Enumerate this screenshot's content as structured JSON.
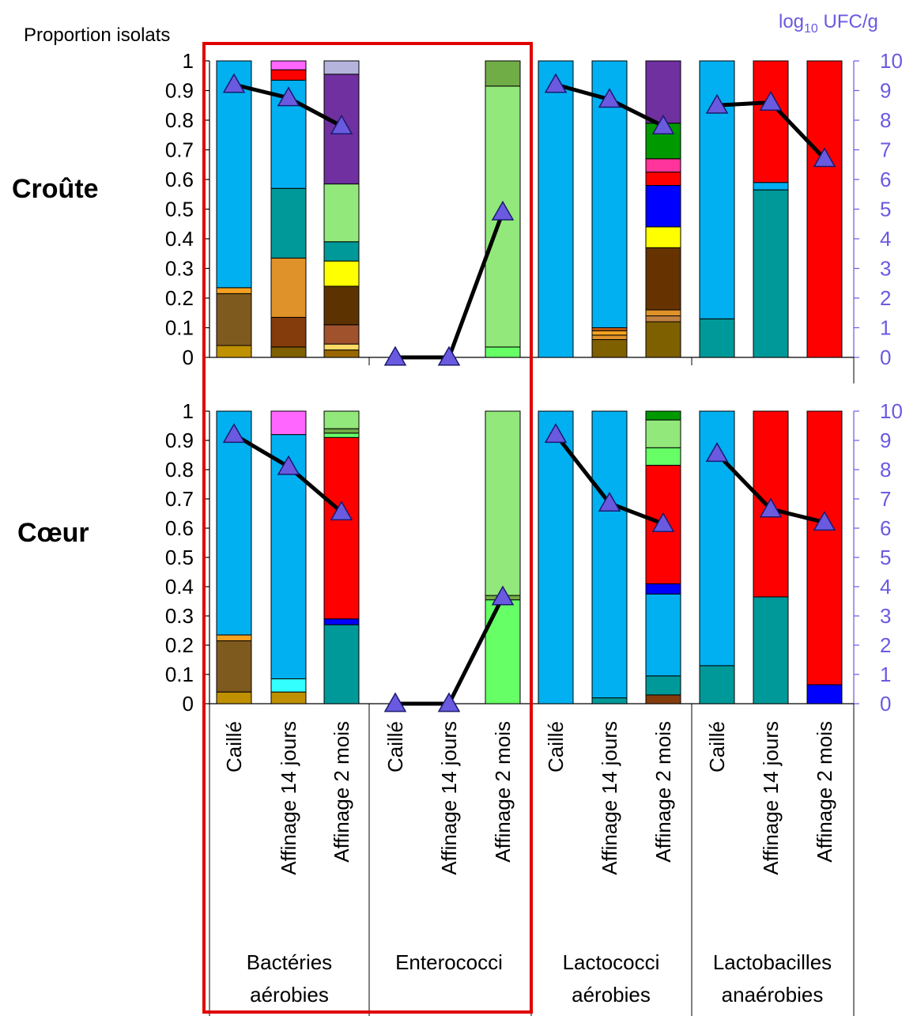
{
  "chart_data": {
    "type": "bar",
    "stacked": true,
    "y_left_label": "Proportion isolats",
    "y_right_label_main": "log",
    "y_right_label_sub": "10",
    "y_right_label_tail": " UFC/g",
    "y_left_ticks": [
      "0",
      "0.1",
      "0.2",
      "0.3",
      "0.4",
      "0.5",
      "0.6",
      "0.7",
      "0.8",
      "0.9",
      "1"
    ],
    "y_right_ticks": [
      "0",
      "1",
      "2",
      "3",
      "4",
      "5",
      "6",
      "7",
      "8",
      "9",
      "10"
    ],
    "ylim_left": [
      0,
      1
    ],
    "ylim_right": [
      0,
      10
    ],
    "categories": [
      "Caillé",
      "Affinage 14 jours",
      "Affinage 2 mois",
      "Caillé",
      "Affinage 14 jours",
      "Affinage 2 mois",
      "Caillé",
      "Affinage 14 jours",
      "Affinage 2 mois",
      "Caillé",
      "Affinage 14 jours",
      "Affinage 2 mois"
    ],
    "groups": [
      {
        "line1": "Bactéries",
        "line2": "aérobies"
      },
      {
        "line1": "Enterococci",
        "line2": ""
      },
      {
        "line1": "Lactococci",
        "line2": "aérobies"
      },
      {
        "line1": "Lactobacilles",
        "line2": "anaérobies"
      }
    ],
    "panels": [
      {
        "name": "Croûte",
        "bars": [
          [
            {
              "v": 0.04,
              "c": "#BF9000"
            },
            {
              "v": 0.175,
              "c": "#7F5A1E"
            },
            {
              "v": 0.02,
              "c": "#F4A020"
            },
            {
              "v": 0.765,
              "c": "#00B0F0"
            }
          ],
          [
            {
              "v": 0.035,
              "c": "#7F6000"
            },
            {
              "v": 0.1,
              "c": "#843C0C"
            },
            {
              "v": 0.2,
              "c": "#E0922A"
            },
            {
              "v": 0.235,
              "c": "#009999"
            },
            {
              "v": 0.365,
              "c": "#00B0F0"
            },
            {
              "v": 0.035,
              "c": "#FF0000"
            },
            {
              "v": 0.03,
              "c": "#FF66FF"
            }
          ],
          [
            {
              "v": 0.025,
              "c": "#996600"
            },
            {
              "v": 0.02,
              "c": "#FFD966"
            },
            {
              "v": 0.065,
              "c": "#A0522D"
            },
            {
              "v": 0.13,
              "c": "#5C3300"
            },
            {
              "v": 0.085,
              "c": "#FFFF00"
            },
            {
              "v": 0.065,
              "c": "#009999"
            },
            {
              "v": 0.195,
              "c": "#92E87A"
            },
            {
              "v": 0.37,
              "c": "#7030A0"
            },
            {
              "v": 0.045,
              "c": "#B4B4DC"
            }
          ],
          [],
          [],
          [
            {
              "v": 0.035,
              "c": "#66FF66"
            },
            {
              "v": 0.88,
              "c": "#92E87A"
            },
            {
              "v": 0.085,
              "c": "#70AD47"
            }
          ],
          [
            {
              "v": 1.0,
              "c": "#00B0F0"
            }
          ],
          [
            {
              "v": 0.06,
              "c": "#7F6000"
            },
            {
              "v": 0.015,
              "c": "#E0922A"
            },
            {
              "v": 0.015,
              "c": "#F4A020"
            },
            {
              "v": 0.01,
              "c": "#C55A11"
            },
            {
              "v": 0.9,
              "c": "#00B0F0"
            }
          ],
          [
            {
              "v": 0.12,
              "c": "#7F6000"
            },
            {
              "v": 0.02,
              "c": "#C08040"
            },
            {
              "v": 0.02,
              "c": "#E0922A"
            },
            {
              "v": 0.21,
              "c": "#663300"
            },
            {
              "v": 0.07,
              "c": "#FFFF00"
            },
            {
              "v": 0.14,
              "c": "#0000FF"
            },
            {
              "v": 0.045,
              "c": "#FF0000"
            },
            {
              "v": 0.045,
              "c": "#FF3399"
            },
            {
              "v": 0.12,
              "c": "#009900"
            },
            {
              "v": 0.21,
              "c": "#7030A0"
            }
          ],
          [
            {
              "v": 0.13,
              "c": "#009999"
            },
            {
              "v": 0.87,
              "c": "#00B0F0"
            }
          ],
          [
            {
              "v": 0.565,
              "c": "#009999"
            },
            {
              "v": 0.025,
              "c": "#00B0F0"
            },
            {
              "v": 0.41,
              "c": "#FF0000"
            }
          ],
          [
            {
              "v": 1.0,
              "c": "#FF0000"
            }
          ]
        ],
        "log_ufc": [
          9.2,
          8.75,
          7.8,
          0,
          0,
          4.9,
          9.2,
          8.7,
          7.8,
          8.5,
          8.6,
          6.7
        ]
      },
      {
        "name": "Cœur",
        "bars": [
          [
            {
              "v": 0.04,
              "c": "#BF9000"
            },
            {
              "v": 0.175,
              "c": "#7F5A1E"
            },
            {
              "v": 0.02,
              "c": "#F4A020"
            },
            {
              "v": 0.765,
              "c": "#00B0F0"
            }
          ],
          [
            {
              "v": 0.04,
              "c": "#BF9000"
            },
            {
              "v": 0.045,
              "c": "#33FFFF"
            },
            {
              "v": 0.835,
              "c": "#00B0F0"
            },
            {
              "v": 0.08,
              "c": "#FF66FF"
            }
          ],
          [
            {
              "v": 0.27,
              "c": "#009999"
            },
            {
              "v": 0.02,
              "c": "#0000FF"
            },
            {
              "v": 0.62,
              "c": "#FF0000"
            },
            {
              "v": 0.015,
              "c": "#66FF66"
            },
            {
              "v": 0.015,
              "c": "#70AD47"
            },
            {
              "v": 0.06,
              "c": "#92E87A"
            }
          ],
          [],
          [],
          [
            {
              "v": 0.355,
              "c": "#66FF66"
            },
            {
              "v": 0.015,
              "c": "#70AD47"
            },
            {
              "v": 0.63,
              "c": "#92E87A"
            }
          ],
          [
            {
              "v": 1.0,
              "c": "#00B0F0"
            }
          ],
          [
            {
              "v": 0.02,
              "c": "#009999"
            },
            {
              "v": 0.98,
              "c": "#00B0F0"
            }
          ],
          [
            {
              "v": 0.03,
              "c": "#843C0C"
            },
            {
              "v": 0.065,
              "c": "#009999"
            },
            {
              "v": 0.28,
              "c": "#00B0F0"
            },
            {
              "v": 0.035,
              "c": "#0000FF"
            },
            {
              "v": 0.405,
              "c": "#FF0000"
            },
            {
              "v": 0.06,
              "c": "#66FF66"
            },
            {
              "v": 0.095,
              "c": "#92E87A"
            },
            {
              "v": 0.03,
              "c": "#009900"
            }
          ],
          [
            {
              "v": 0.13,
              "c": "#009999"
            },
            {
              "v": 0.87,
              "c": "#00B0F0"
            }
          ],
          [
            {
              "v": 0.365,
              "c": "#009999"
            },
            {
              "v": 0.635,
              "c": "#FF0000"
            }
          ],
          [
            {
              "v": 0.065,
              "c": "#0000FF"
            },
            {
              "v": 0.935,
              "c": "#FF0000"
            }
          ]
        ],
        "log_ufc": [
          9.2,
          8.1,
          6.55,
          0,
          0,
          3.65,
          9.2,
          6.85,
          6.15,
          8.55,
          6.65,
          6.2
        ]
      }
    ],
    "line_color": "#000000",
    "marker_color": "#6A5AE0",
    "highlight_box_color": "#E00000",
    "axis_color": "#6A5AE0"
  }
}
